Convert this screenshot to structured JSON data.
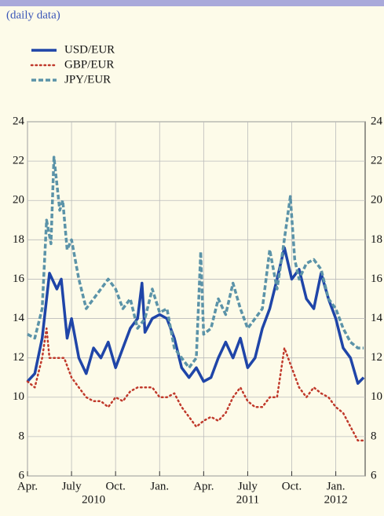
{
  "chart_data": {
    "type": "line",
    "subtitle": "(daily data)",
    "xlim": [
      0,
      23
    ],
    "xticks": [
      {
        "value": 0,
        "label": "Apr."
      },
      {
        "value": 3,
        "label": "July"
      },
      {
        "value": 6,
        "label": "Oct."
      },
      {
        "value": 9,
        "label": "Jan."
      },
      {
        "value": 12,
        "label": "Apr."
      },
      {
        "value": 15,
        "label": "July"
      },
      {
        "value": 18,
        "label": "Oct."
      },
      {
        "value": 21,
        "label": "Jan."
      }
    ],
    "year_labels": [
      {
        "value": 4.5,
        "label": "2010"
      },
      {
        "value": 15,
        "label": "2011"
      },
      {
        "value": 21,
        "label": "2012"
      }
    ],
    "ylim": [
      6,
      24
    ],
    "yticks": [
      6,
      8,
      10,
      12,
      14,
      16,
      18,
      20,
      22,
      24
    ],
    "grid": true,
    "series": [
      {
        "name": "USD/EUR",
        "color": "#1f45a8",
        "style": "solid",
        "x": [
          0,
          0.5,
          1,
          1.5,
          2,
          2.3,
          2.7,
          3,
          3.5,
          4,
          4.5,
          5,
          5.5,
          6,
          6.5,
          7,
          7.5,
          7.8,
          8,
          8.5,
          9,
          9.5,
          10,
          10.5,
          11,
          11.5,
          12,
          12.5,
          13,
          13.5,
          14,
          14.5,
          15,
          15.5,
          16,
          16.5,
          17,
          17.5,
          18,
          18.5,
          19,
          19.5,
          20,
          20.5,
          21,
          21.5,
          22,
          22.5,
          22.9
        ],
        "values": [
          10.8,
          11.2,
          13,
          16.3,
          15.5,
          16,
          13,
          14,
          12,
          11.2,
          12.5,
          12,
          12.8,
          11.5,
          12.5,
          13.5,
          14,
          15.8,
          13.3,
          14,
          14.2,
          14,
          13,
          11.5,
          11,
          11.5,
          10.8,
          11,
          12,
          12.8,
          12,
          13,
          11.5,
          12,
          13.5,
          14.5,
          16,
          17.6,
          16,
          16.5,
          15,
          14.5,
          16.3,
          15,
          14,
          12.5,
          12,
          10.7,
          11
        ]
      },
      {
        "name": "GBP/EUR",
        "color": "#c0392b",
        "style": "dotted",
        "x": [
          0,
          0.5,
          1,
          1.3,
          1.5,
          2,
          2.5,
          3,
          3.5,
          4,
          4.5,
          5,
          5.5,
          6,
          6.5,
          7,
          7.5,
          8,
          8.5,
          9,
          9.5,
          10,
          10.5,
          11,
          11.5,
          12,
          12.5,
          13,
          13.5,
          14,
          14.5,
          15,
          15.5,
          16,
          16.5,
          17,
          17.5,
          18,
          18.5,
          19,
          19.5,
          20,
          20.5,
          21,
          21.5,
          22,
          22.5,
          22.9
        ],
        "values": [
          10.8,
          10.5,
          12,
          13.5,
          12,
          12,
          12,
          11,
          10.5,
          10,
          9.8,
          9.8,
          9.5,
          10,
          9.8,
          10.3,
          10.5,
          10.5,
          10.5,
          10,
          10,
          10.2,
          9.5,
          9,
          8.5,
          8.8,
          9,
          8.8,
          9.2,
          10,
          10.5,
          9.8,
          9.5,
          9.5,
          10,
          10,
          12.5,
          11.5,
          10.5,
          10,
          10.5,
          10.2,
          10,
          9.5,
          9.2,
          8.5,
          7.8,
          7.8
        ]
      },
      {
        "name": "JPY/EUR",
        "color": "#5b93a8",
        "style": "dashed",
        "x": [
          0,
          0.5,
          1,
          1.3,
          1.6,
          1.8,
          2.2,
          2.4,
          2.7,
          3,
          3.5,
          4,
          4.5,
          5,
          5.5,
          6,
          6.5,
          7,
          7.5,
          8,
          8.5,
          9,
          9.5,
          10,
          10.5,
          11,
          11.5,
          11.8,
          12,
          12.5,
          13,
          13.5,
          14,
          14.5,
          15,
          15.5,
          16,
          16.5,
          17,
          17.4,
          17.9,
          18.2,
          18.5,
          19,
          19.5,
          20,
          20.5,
          21,
          21.5,
          22,
          22.5,
          22.9
        ],
        "values": [
          13.2,
          13,
          14.5,
          19,
          17.8,
          22.2,
          19.5,
          20,
          17.5,
          18,
          16,
          14.5,
          15,
          15.5,
          16,
          15.5,
          14.5,
          15,
          13.5,
          14,
          15.5,
          14.3,
          14.5,
          12.5,
          12,
          11.5,
          12,
          17.4,
          13.2,
          13.5,
          15,
          14.2,
          15.8,
          14.5,
          13.5,
          14,
          14.5,
          17.5,
          15.5,
          17.5,
          20.2,
          17,
          16,
          16.8,
          17,
          16.5,
          15,
          14.5,
          13.5,
          12.8,
          12.5,
          12.5
        ]
      }
    ]
  }
}
